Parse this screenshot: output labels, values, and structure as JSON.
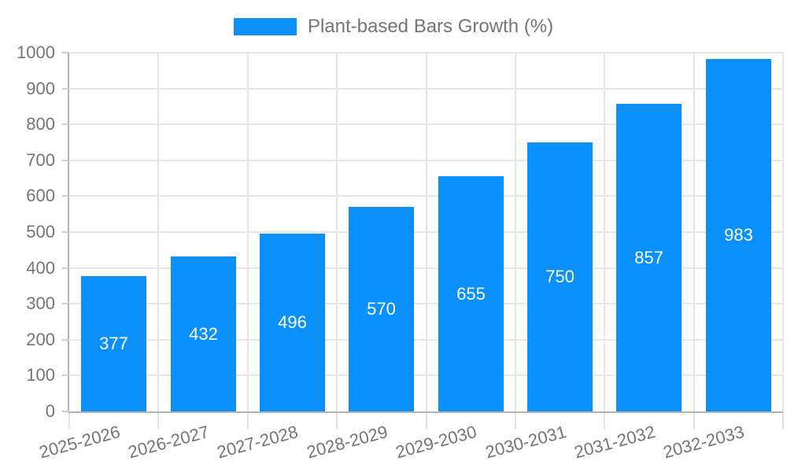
{
  "chart_data": {
    "type": "bar",
    "legend": [
      "Plant-based Bars Growth (%)"
    ],
    "categories": [
      "2025-2026",
      "2026-2027",
      "2027-2028",
      "2028-2029",
      "2029-2030",
      "2030-2031",
      "2031-2032",
      "2032-2033"
    ],
    "values": [
      377,
      432,
      496,
      570,
      655,
      750,
      857,
      983
    ],
    "ylim": [
      0,
      1000
    ],
    "yticks": [
      0,
      100,
      200,
      300,
      400,
      500,
      600,
      700,
      800,
      900,
      1000
    ],
    "grid": true,
    "legend_position": "top-center",
    "bar_label_position": "inside-center",
    "x_tick_label_rotation_deg": 15,
    "colors": {
      "bar": "#0a90f8",
      "bar_label": "#ffffff",
      "grid": "#e6e6e6",
      "axis_line": "#b3b3b3",
      "y_tick": "#d0d0d0",
      "x_tick": "#e0e0e0",
      "tick_label": "#757575",
      "legend_text": "#757575",
      "background": "#ffffff"
    }
  }
}
